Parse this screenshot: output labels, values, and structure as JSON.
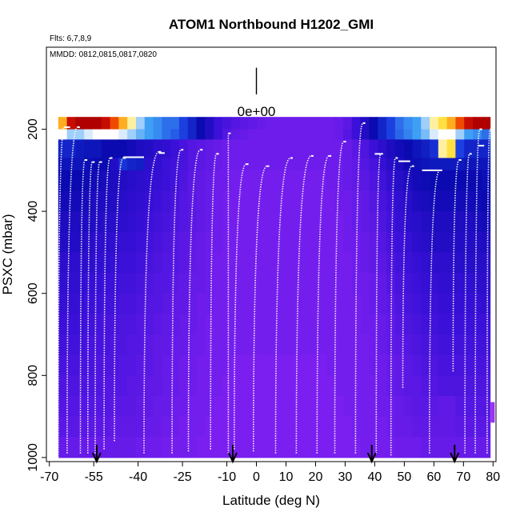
{
  "chart_data": {
    "type": "heatmap",
    "title": "ATOM1 Northbound H1202_GMI",
    "flights_note": "Flts: 6,7,8,9",
    "dates_note": "MMDD: 0812,0815,0817,0820",
    "scale_label": "0e+00",
    "xlabel": "Latitude (deg N)",
    "ylabel": "PSXC (mbar)",
    "xlim": [
      -71,
      81
    ],
    "ylim": [
      1010,
      0
    ],
    "x_tick_values": [
      -70,
      -55,
      -40,
      -25,
      -10,
      0,
      10,
      20,
      30,
      40,
      50,
      60,
      70,
      80
    ],
    "x_tick_labels": [
      "-70",
      "-55",
      "-40",
      "-25",
      "-10",
      "0",
      "10",
      "20",
      "30",
      "40",
      "50",
      "60",
      "70",
      "80"
    ],
    "y_tick_values": [
      200,
      400,
      600,
      800,
      1000
    ],
    "y_tick_labels": [
      "200",
      "400",
      "600",
      "800",
      "1000"
    ],
    "grid": false,
    "heatmap": {
      "lat_range": [
        -67,
        79
      ],
      "pressure_levels_top": [
        170,
        200,
        225,
        270,
        300,
        350,
        400,
        450,
        500,
        550,
        600,
        650,
        700,
        750,
        800,
        850,
        900,
        950
      ],
      "pressure_bottom": 1000,
      "colormap": [
        "#7a1ff0",
        "#3b10d8",
        "#0a0ab0",
        "#1c3fe0",
        "#3e9ff5",
        "#ffffff",
        "#ffe040",
        "#ff7a00",
        "#dd1a00",
        "#b00000"
      ],
      "cell_color_index": [
        [
          6.5,
          8.5,
          9.5,
          9.5,
          9.0,
          8.5,
          7.5,
          6.5,
          5.5,
          4.5,
          4.0,
          3.8,
          3.5,
          3.5,
          3.0,
          2.5,
          2.0,
          1.5,
          1.0,
          0.8,
          0.6,
          0.5,
          0.4,
          0.3,
          0.2,
          0.2,
          0.2,
          0.2,
          0.2,
          0.2,
          0.2,
          0.2,
          0.3,
          0.5,
          1.0,
          1.5,
          2.0,
          2.5,
          3.0,
          3.5,
          3.8,
          4.0,
          4.5,
          5.5,
          6.0,
          6.5,
          7.5,
          8.5,
          9.5,
          9.0
        ],
        [
          5.0,
          4.5,
          4.5,
          4.8,
          5.0,
          5.0,
          5.0,
          4.8,
          4.5,
          4.2,
          4.0,
          3.8,
          3.5,
          3.3,
          3.0,
          2.5,
          2.0,
          1.5,
          1.0,
          0.6,
          0.4,
          0.3,
          0.2,
          0.2,
          0.2,
          0.2,
          0.2,
          0.2,
          0.2,
          0.2,
          0.2,
          0.2,
          0.3,
          0.6,
          1.0,
          1.5,
          2.0,
          2.5,
          3.0,
          3.4,
          3.7,
          4.0,
          4.3,
          4.8,
          5.0,
          5.0,
          4.5,
          4.0,
          3.8,
          3.5
        ],
        [
          2.5,
          2.5,
          2.3,
          2.2,
          2.2,
          2.0,
          2.0,
          2.0,
          1.8,
          1.6,
          1.5,
          1.3,
          1.2,
          1.0,
          0.8,
          0.6,
          0.5,
          0.4,
          0.3,
          0.2,
          0.2,
          0.2,
          0.2,
          0.2,
          0.2,
          0.2,
          0.2,
          0.2,
          0.2,
          0.2,
          0.2,
          0.2,
          0.2,
          0.3,
          0.5,
          0.7,
          1.0,
          1.3,
          1.6,
          1.8,
          2.0,
          2.2,
          2.4,
          2.7,
          5.5,
          6.0,
          3.0,
          2.5,
          2.5,
          2.5
        ],
        [
          2.2,
          2.2,
          2.2,
          2.1,
          2.0,
          2.0,
          1.5,
          2.8,
          2.5,
          2.4,
          1.3,
          1.2,
          1.0,
          0.9,
          0.8,
          0.6,
          0.5,
          0.4,
          0.3,
          0.2,
          0.2,
          0.2,
          0.2,
          0.2,
          0.2,
          0.2,
          0.2,
          0.2,
          0.2,
          0.2,
          0.2,
          0.2,
          0.2,
          0.3,
          0.4,
          0.6,
          0.8,
          1.1,
          1.4,
          1.6,
          1.9,
          2.1,
          2.2,
          2.3,
          2.3,
          2.3,
          2.3,
          2.2,
          2.2,
          2.2
        ],
        [
          2.0,
          2.0,
          2.0,
          1.9,
          1.8,
          1.7,
          1.6,
          1.5,
          1.4,
          1.3,
          1.2,
          1.1,
          1.0,
          0.9,
          0.7,
          0.5,
          0.4,
          0.3,
          0.2,
          0.2,
          0.1,
          0.1,
          0.1,
          0.1,
          0.1,
          0.1,
          0.1,
          0.1,
          0.1,
          0.1,
          0.1,
          0.2,
          0.2,
          0.3,
          0.4,
          0.5,
          0.7,
          0.9,
          1.2,
          1.4,
          1.6,
          1.8,
          1.9,
          2.0,
          2.0,
          2.0,
          2.0,
          2.0,
          2.0,
          2.1
        ],
        [
          1.8,
          1.8,
          1.8,
          1.7,
          1.6,
          1.6,
          1.5,
          1.4,
          1.3,
          1.2,
          1.1,
          1.0,
          0.9,
          0.8,
          0.6,
          0.5,
          0.4,
          0.3,
          0.2,
          0.1,
          0.1,
          0.1,
          0.1,
          0.1,
          0.1,
          0.1,
          0.1,
          0.1,
          0.1,
          0.1,
          0.1,
          0.1,
          0.2,
          0.2,
          0.3,
          0.4,
          0.6,
          0.8,
          1.0,
          1.2,
          1.4,
          1.6,
          1.7,
          1.8,
          1.8,
          1.8,
          1.8,
          1.8,
          1.9,
          2.0
        ],
        [
          1.6,
          1.6,
          1.6,
          1.6,
          1.5,
          1.4,
          1.4,
          1.3,
          1.2,
          1.1,
          1.0,
          0.9,
          0.8,
          0.7,
          0.6,
          0.5,
          0.4,
          0.3,
          0.2,
          0.1,
          0.1,
          0.1,
          0.1,
          0.1,
          0.1,
          0.1,
          0.1,
          0.1,
          0.1,
          0.1,
          0.1,
          0.1,
          0.1,
          0.2,
          0.3,
          0.4,
          0.5,
          0.7,
          0.9,
          1.1,
          1.3,
          1.4,
          1.5,
          1.6,
          1.6,
          1.6,
          1.6,
          1.6,
          1.7,
          1.8
        ],
        [
          1.5,
          1.5,
          1.5,
          1.4,
          1.3,
          1.3,
          1.2,
          1.1,
          1.1,
          1.0,
          0.9,
          0.8,
          0.7,
          0.6,
          0.5,
          0.4,
          0.3,
          0.2,
          0.2,
          0.1,
          0.1,
          0.1,
          0.1,
          0.1,
          0.1,
          0.1,
          0.1,
          0.1,
          0.1,
          0.1,
          0.1,
          0.1,
          0.1,
          0.2,
          0.2,
          0.3,
          0.4,
          0.6,
          0.8,
          1.0,
          1.1,
          1.3,
          1.4,
          1.5,
          1.5,
          1.5,
          1.5,
          1.5,
          1.5,
          1.6
        ],
        [
          1.3,
          1.3,
          1.3,
          1.3,
          1.2,
          1.2,
          1.1,
          1.0,
          1.0,
          0.9,
          0.8,
          0.7,
          0.6,
          0.6,
          0.5,
          0.4,
          0.3,
          0.2,
          0.1,
          0.1,
          0.1,
          0.1,
          0.1,
          0.1,
          0.1,
          0.1,
          0.1,
          0.1,
          0.1,
          0.1,
          0.1,
          0.1,
          0.1,
          0.1,
          0.2,
          0.3,
          0.4,
          0.5,
          0.7,
          0.9,
          1.0,
          1.1,
          1.2,
          1.3,
          1.3,
          1.3,
          1.4,
          1.4,
          1.4,
          1.4
        ],
        [
          1.2,
          1.2,
          1.2,
          1.1,
          1.1,
          1.0,
          1.0,
          0.9,
          0.9,
          0.8,
          0.7,
          0.6,
          0.6,
          0.5,
          0.4,
          0.3,
          0.3,
          0.2,
          0.1,
          0.1,
          0.1,
          0.1,
          0.1,
          0.1,
          0.1,
          0.1,
          0.1,
          0.1,
          0.1,
          0.1,
          0.1,
          0.1,
          0.1,
          0.1,
          0.2,
          0.2,
          0.3,
          0.4,
          0.6,
          0.8,
          0.9,
          1.0,
          1.1,
          1.1,
          1.2,
          1.2,
          1.2,
          1.2,
          1.3,
          1.3
        ],
        [
          1.1,
          1.1,
          1.1,
          1.0,
          1.0,
          0.9,
          0.9,
          0.8,
          0.8,
          0.7,
          0.6,
          0.6,
          0.5,
          0.4,
          0.4,
          0.3,
          0.2,
          0.2,
          0.1,
          0.1,
          0.1,
          0.1,
          0.1,
          0.1,
          0.1,
          0.1,
          0.1,
          0.1,
          0.1,
          0.1,
          0.1,
          0.1,
          0.1,
          0.1,
          0.1,
          0.2,
          0.3,
          0.4,
          0.5,
          0.7,
          0.8,
          0.9,
          1.0,
          1.0,
          1.1,
          1.1,
          1.1,
          1.1,
          1.1,
          1.2
        ],
        [
          1.0,
          1.0,
          1.0,
          0.9,
          0.9,
          0.8,
          0.8,
          0.7,
          0.7,
          0.6,
          0.6,
          0.5,
          0.4,
          0.4,
          0.3,
          0.3,
          0.2,
          0.1,
          0.1,
          0.1,
          0.1,
          0.1,
          0.1,
          0.1,
          0.1,
          0.1,
          0.1,
          0.1,
          0.1,
          0.1,
          0.1,
          0.1,
          0.1,
          0.1,
          0.1,
          0.2,
          0.2,
          0.3,
          0.4,
          0.6,
          0.7,
          0.8,
          0.9,
          0.9,
          1.0,
          1.0,
          1.0,
          1.0,
          1.0,
          1.0
        ],
        [
          0.9,
          0.9,
          0.9,
          0.8,
          0.8,
          0.8,
          0.7,
          0.7,
          0.6,
          0.6,
          0.5,
          0.4,
          0.4,
          0.3,
          0.3,
          0.2,
          0.2,
          0.1,
          0.1,
          0.1,
          0.1,
          0.1,
          0.1,
          0.1,
          0.1,
          0.1,
          0.1,
          0.1,
          0.1,
          0.1,
          0.1,
          0.1,
          0.1,
          0.1,
          0.1,
          0.1,
          0.2,
          0.3,
          0.4,
          0.5,
          0.6,
          0.7,
          0.8,
          0.8,
          0.9,
          0.9,
          0.9,
          0.9,
          0.9,
          0.9
        ],
        [
          0.8,
          0.8,
          0.8,
          0.8,
          0.7,
          0.7,
          0.7,
          0.6,
          0.6,
          0.5,
          0.5,
          0.4,
          0.3,
          0.3,
          0.2,
          0.2,
          0.1,
          0.1,
          0.1,
          0.1,
          0.0,
          0.0,
          0.0,
          0.0,
          0.0,
          0.0,
          0.0,
          0.0,
          0.0,
          0.0,
          0.0,
          0.1,
          0.1,
          0.1,
          0.1,
          0.1,
          0.2,
          0.2,
          0.3,
          0.4,
          0.5,
          0.6,
          0.7,
          0.7,
          0.8,
          0.8,
          0.8,
          0.8,
          0.8,
          0.8
        ],
        [
          0.7,
          0.7,
          0.7,
          0.7,
          0.7,
          0.6,
          0.6,
          0.6,
          0.5,
          0.5,
          0.4,
          0.4,
          0.3,
          0.3,
          0.2,
          0.2,
          0.1,
          0.1,
          0.1,
          0.0,
          0.0,
          0.0,
          0.0,
          0.0,
          0.0,
          0.0,
          0.0,
          0.0,
          0.0,
          0.0,
          0.0,
          0.0,
          0.1,
          0.1,
          0.1,
          0.1,
          0.1,
          0.2,
          0.3,
          0.4,
          0.5,
          0.5,
          0.6,
          0.6,
          0.7,
          0.7,
          0.7,
          0.7,
          0.7,
          0.7
        ],
        [
          0.6,
          0.6,
          0.6,
          0.6,
          0.6,
          0.6,
          0.5,
          0.5,
          0.5,
          0.4,
          0.4,
          0.3,
          0.3,
          0.2,
          0.2,
          0.1,
          0.1,
          0.1,
          0.0,
          0.0,
          0.0,
          0.0,
          0.0,
          0.0,
          0.0,
          0.0,
          0.0,
          0.0,
          0.0,
          0.0,
          0.0,
          0.0,
          0.0,
          0.1,
          0.1,
          0.1,
          0.1,
          0.2,
          0.2,
          0.3,
          0.4,
          0.5,
          0.5,
          0.5,
          0.4,
          0.4,
          0.6,
          0.6,
          0.6,
          0.6
        ],
        [
          0.5,
          0.5,
          0.5,
          0.5,
          0.5,
          0.5,
          0.4,
          0.4,
          0.4,
          0.4,
          0.3,
          0.3,
          0.2,
          0.2,
          0.1,
          0.1,
          0.1,
          0.0,
          0.0,
          0.0,
          0.0,
          0.0,
          0.0,
          0.0,
          0.0,
          0.0,
          0.0,
          0.0,
          0.0,
          0.0,
          0.0,
          0.0,
          0.0,
          0.0,
          0.1,
          0.1,
          0.1,
          0.1,
          0.2,
          0.3,
          0.3,
          0.4,
          0.4,
          0.4,
          0.4,
          0.4,
          0.5,
          0.5,
          0.5,
          0.5
        ],
        [
          0.3,
          0.3,
          0.3,
          0.3,
          0.3,
          0.3,
          0.3,
          0.3,
          0.3,
          0.2,
          0.2,
          0.2,
          0.1,
          0.1,
          0.1,
          0.1,
          0.0,
          0.0,
          0.0,
          0.0,
          0.0,
          0.0,
          0.0,
          0.0,
          0.0,
          0.0,
          0.0,
          0.0,
          0.0,
          0.0,
          0.0,
          0.0,
          0.0,
          0.0,
          0.0,
          0.1,
          0.1,
          0.1,
          0.1,
          0.2,
          0.2,
          0.2,
          0.3,
          0.3,
          0.3,
          0.3,
          0.3,
          0.3,
          0.3,
          0.3
        ]
      ]
    },
    "profiles": [
      {
        "lat_top": -65.0,
        "lat_bottom": -67.0,
        "p_top": 195,
        "p_bottom": 1000
      },
      {
        "lat_top": -60.5,
        "lat_bottom": -64.0,
        "p_top": 195,
        "p_bottom": 990
      },
      {
        "lat_top": -58.0,
        "lat_bottom": -59.5,
        "p_top": 275,
        "p_bottom": 990
      },
      {
        "lat_top": -55.5,
        "lat_bottom": -57.0,
        "p_top": 280,
        "p_bottom": 990
      },
      {
        "lat_top": -53.0,
        "lat_bottom": -54.5,
        "p_top": 280,
        "p_bottom": 990
      },
      {
        "lat_top": -49.5,
        "lat_bottom": -51.5,
        "p_top": 270,
        "p_bottom": 980
      },
      {
        "lat_top": -45.0,
        "lat_bottom": -48.0,
        "p_top": 270,
        "p_bottom": 960
      },
      {
        "lat_top": -33.0,
        "lat_bottom": -38.0,
        "p_top": 255,
        "p_bottom": 990
      },
      {
        "lat_top": -25.5,
        "lat_bottom": -28.5,
        "p_top": 250,
        "p_bottom": 990
      },
      {
        "lat_top": -19.0,
        "lat_bottom": -23.0,
        "p_top": 250,
        "p_bottom": 985
      },
      {
        "lat_top": -13.5,
        "lat_bottom": -15.5,
        "p_top": 260,
        "p_bottom": 980
      },
      {
        "lat_top": -9.5,
        "lat_bottom": -9.5,
        "p_top": 210,
        "p_bottom": 990
      },
      {
        "lat_top": -3.5,
        "lat_bottom": -7.5,
        "p_top": 285,
        "p_bottom": 980
      },
      {
        "lat_top": 3.5,
        "lat_bottom": -1.0,
        "p_top": 290,
        "p_bottom": 985
      },
      {
        "lat_top": 11.5,
        "lat_bottom": 6.5,
        "p_top": 270,
        "p_bottom": 990
      },
      {
        "lat_top": 18.5,
        "lat_bottom": 13.5,
        "p_top": 265,
        "p_bottom": 990
      },
      {
        "lat_top": 24.5,
        "lat_bottom": 20.5,
        "p_top": 265,
        "p_bottom": 990
      },
      {
        "lat_top": 29.5,
        "lat_bottom": 26.5,
        "p_top": 230,
        "p_bottom": 990
      },
      {
        "lat_top": 36.0,
        "lat_bottom": 33.5,
        "p_top": 185,
        "p_bottom": 990
      },
      {
        "lat_top": 42.0,
        "lat_bottom": 40.5,
        "p_top": 260,
        "p_bottom": 990
      },
      {
        "lat_top": 47.0,
        "lat_bottom": 45.5,
        "p_top": 270,
        "p_bottom": 995
      },
      {
        "lat_top": 52.5,
        "lat_bottom": 49.5,
        "p_top": 290,
        "p_bottom": 830
      },
      {
        "lat_top": 62.0,
        "lat_bottom": 58.5,
        "p_top": 300,
        "p_bottom": 990
      },
      {
        "lat_top": 68.5,
        "lat_bottom": 66.5,
        "p_top": 275,
        "p_bottom": 790
      },
      {
        "lat_top": 72.0,
        "lat_bottom": 70.5,
        "p_top": 260,
        "p_bottom": 990
      },
      {
        "lat_top": 75.5,
        "lat_bottom": 74.0,
        "p_top": 200,
        "p_bottom": 990
      },
      {
        "lat_top": 79.0,
        "lat_bottom": 78.0,
        "p_top": 200,
        "p_bottom": 990
      }
    ],
    "arrow_latitudes": [
      -54,
      -8,
      39,
      67
    ],
    "scale_bar": {
      "x": 0,
      "p_top": 50,
      "p_bottom": 115,
      "label_p": 190
    },
    "accent_colors": {
      "low": "#7a1ff0",
      "mid": "#0a0ab0",
      "high": "#dd1a00",
      "marker": "#9b2ff5"
    }
  }
}
